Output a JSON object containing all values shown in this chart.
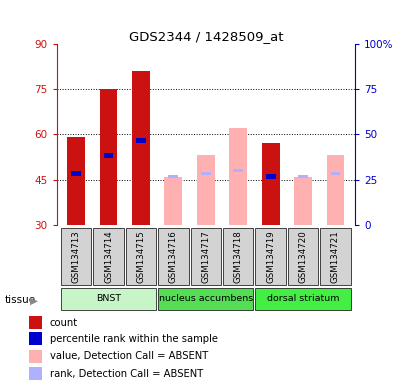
{
  "title": "GDS2344 / 1428509_at",
  "samples": [
    "GSM134713",
    "GSM134714",
    "GSM134715",
    "GSM134716",
    "GSM134717",
    "GSM134718",
    "GSM134719",
    "GSM134720",
    "GSM134721"
  ],
  "count_values": [
    59,
    75,
    81,
    null,
    null,
    null,
    57,
    null,
    null
  ],
  "rank_values": [
    47,
    53,
    58,
    null,
    null,
    null,
    46,
    null,
    null
  ],
  "absent_value_values": [
    null,
    null,
    null,
    46,
    53,
    62,
    null,
    46,
    53
  ],
  "absent_rank_values": [
    null,
    null,
    null,
    46,
    47,
    48,
    null,
    46,
    47
  ],
  "ylim_left": [
    30,
    90
  ],
  "ylim_right": [
    0,
    100
  ],
  "yticks_left": [
    30,
    45,
    60,
    75,
    90
  ],
  "yticks_right": [
    0,
    25,
    50,
    75,
    100
  ],
  "bar_width": 0.55,
  "count_color": "#cc1111",
  "rank_color": "#0000cc",
  "absent_value_color": "#ffb0b0",
  "absent_rank_color": "#b0b0ff",
  "left_axis_color": "#cc1111",
  "right_axis_color": "#0000cc",
  "bg_sample_box": "#d3d3d3",
  "tissue_groups": [
    {
      "label": "BNST",
      "start": 0,
      "end": 3,
      "color": "#c8f5c8"
    },
    {
      "label": "nucleus accumbens",
      "start": 3,
      "end": 6,
      "color": "#55dd55"
    },
    {
      "label": "dorsal striatum",
      "start": 6,
      "end": 9,
      "color": "#55ee55"
    }
  ],
  "legend_items": [
    {
      "color": "#cc1111",
      "label": "count",
      "marker": "s"
    },
    {
      "color": "#0000cc",
      "label": "percentile rank within the sample",
      "marker": "s"
    },
    {
      "color": "#ffb0b0",
      "label": "value, Detection Call = ABSENT",
      "marker": "s"
    },
    {
      "color": "#b0b0ff",
      "label": "rank, Detection Call = ABSENT",
      "marker": "s"
    }
  ]
}
